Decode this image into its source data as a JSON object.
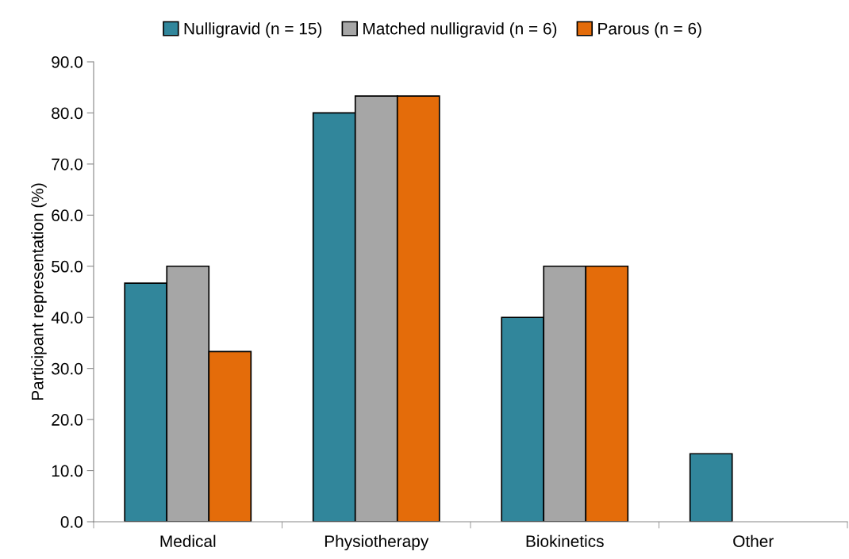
{
  "chart_data": {
    "type": "bar",
    "categories": [
      "Medical",
      "Physiotherapy",
      "Biokinetics",
      "Other"
    ],
    "series": [
      {
        "name": "Nulligravid (n = 15)",
        "color": "#31869b",
        "values": [
          46.7,
          80.0,
          40.0,
          13.3
        ]
      },
      {
        "name": "Matched nulligravid (n = 6)",
        "color": "#a6a6a6",
        "values": [
          50.0,
          83.3,
          50.0,
          null
        ]
      },
      {
        "name": "Parous (n = 6)",
        "color": "#e46c0a",
        "values": [
          33.3,
          83.3,
          50.0,
          null
        ]
      }
    ],
    "ylabel": "Participant representation (%)",
    "ylim": [
      0,
      90
    ],
    "yticks": [
      {
        "value": 0,
        "label": "0.0"
      },
      {
        "value": 10,
        "label": "10.0"
      },
      {
        "value": 20,
        "label": "20.0"
      },
      {
        "value": 30,
        "label": "30.0"
      },
      {
        "value": 40,
        "label": "40.0"
      },
      {
        "value": 50,
        "label": "50.0"
      },
      {
        "value": 60,
        "label": "60.0"
      },
      {
        "value": 70,
        "label": "70.0"
      },
      {
        "value": 80,
        "label": "80.0"
      },
      {
        "value": 90,
        "label": "90.0"
      }
    ],
    "grid": false,
    "legend": "top"
  }
}
